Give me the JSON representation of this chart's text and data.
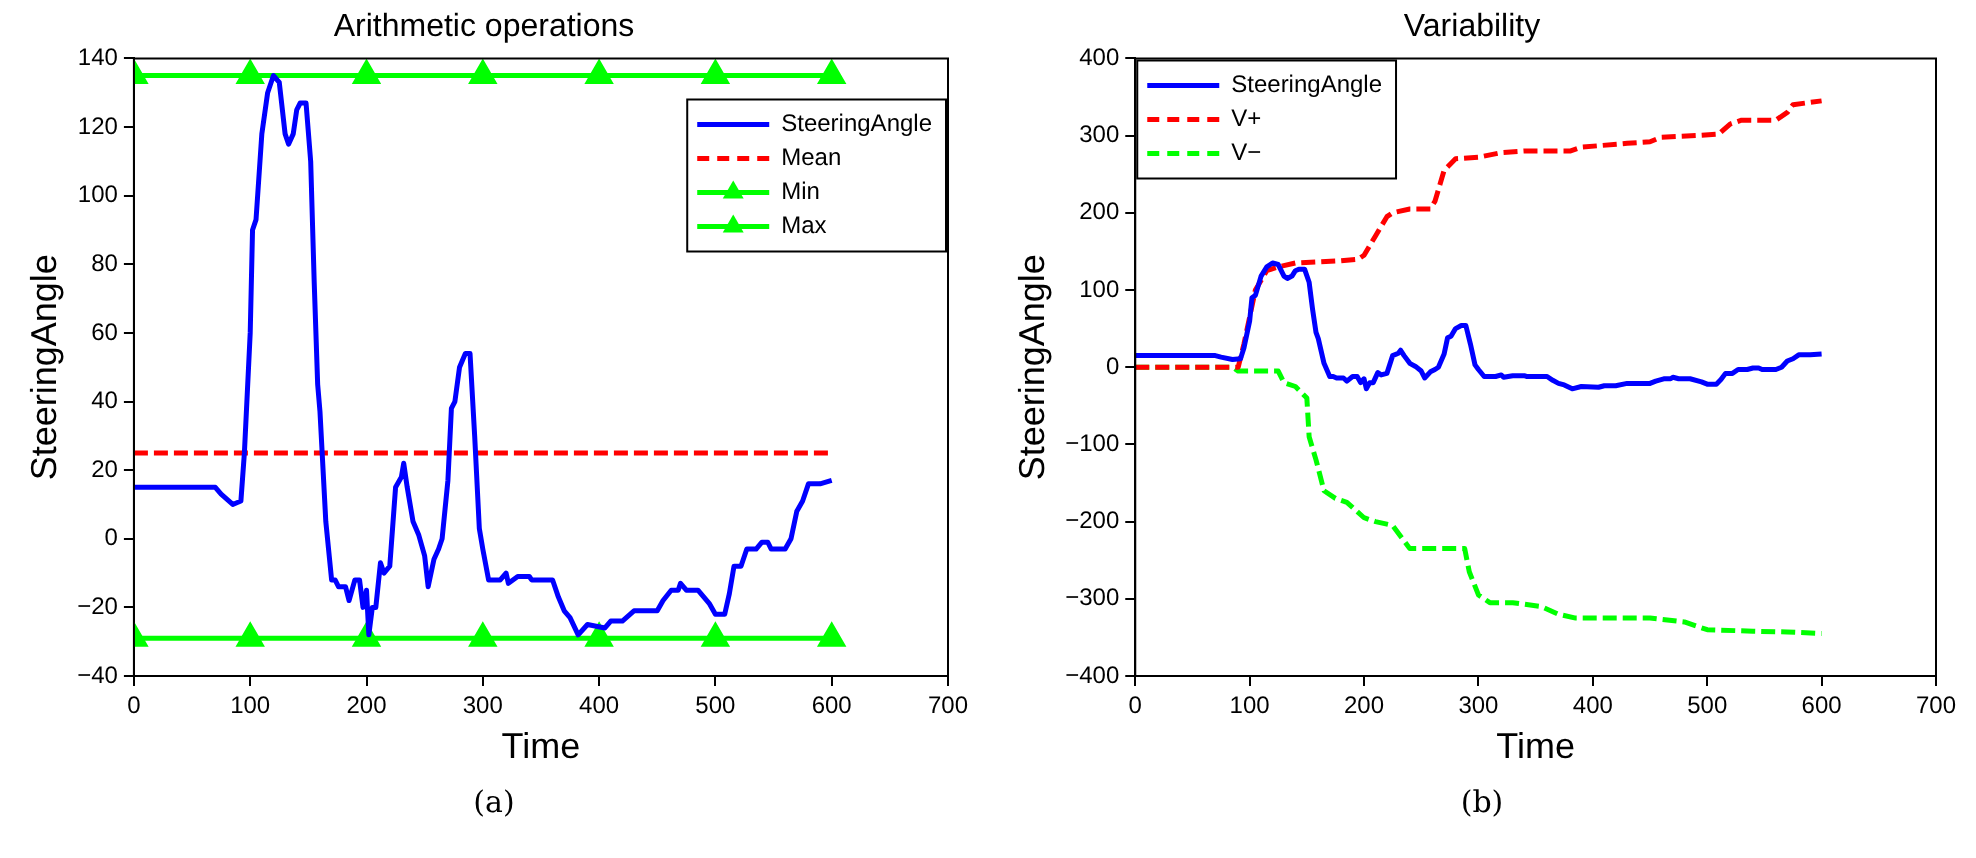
{
  "chart_data": [
    {
      "type": "line",
      "title": "Arithmetic operations",
      "xlabel": "Time",
      "ylabel": "SteeringAngle",
      "xlim": [
        0,
        700
      ],
      "xticks": [
        0,
        100,
        200,
        300,
        400,
        500,
        600,
        700
      ],
      "ylim": [
        -40,
        140
      ],
      "yticks": [
        -40,
        -20,
        0,
        20,
        40,
        60,
        80,
        100,
        120,
        140
      ],
      "grid": false,
      "legend": "top right",
      "annotations": [
        "(a)"
      ],
      "series": [
        {
          "name": "SteeringAngle",
          "color": "#0000ff",
          "line_style": "solid",
          "marker": "none",
          "x": [
            0,
            70,
            75,
            85,
            92,
            95,
            100,
            102,
            105,
            110,
            115,
            120,
            125,
            130,
            133,
            137,
            140,
            143,
            148,
            152,
            155,
            158,
            160,
            165,
            170,
            173,
            176,
            182,
            185,
            190,
            194,
            197,
            200,
            202,
            205,
            208,
            212,
            215,
            220,
            225,
            230,
            232,
            235,
            240,
            245,
            250,
            253,
            258,
            262,
            265,
            270,
            273,
            276,
            280,
            285,
            289,
            293,
            297,
            300,
            305,
            315,
            320,
            322,
            330,
            340,
            342,
            360,
            365,
            370,
            375,
            382,
            390,
            405,
            410,
            420,
            430,
            450,
            455,
            462,
            468,
            470,
            475,
            485,
            495,
            500,
            508,
            512,
            516,
            522,
            527,
            535,
            540,
            545,
            548,
            560,
            565,
            570,
            575,
            580,
            590,
            600
          ],
          "values": [
            15,
            15,
            13,
            10,
            11,
            25,
            60,
            90,
            93,
            118,
            130,
            135,
            133,
            118,
            115,
            118,
            125,
            127,
            127,
            110,
            75,
            45,
            37,
            5,
            -12,
            -12,
            -14,
            -14,
            -18,
            -12,
            -12,
            -20,
            -15,
            -28,
            -20,
            -20,
            -7,
            -10,
            -8,
            15,
            18,
            22,
            15,
            5,
            1,
            -5,
            -14,
            -6,
            -3,
            0,
            17,
            38,
            40,
            50,
            54,
            54,
            30,
            3,
            -3,
            -12,
            -12,
            -10,
            -13,
            -11,
            -11,
            -12,
            -12,
            -17,
            -21,
            -23,
            -28,
            -25,
            -26,
            -24,
            -24,
            -21,
            -21,
            -18,
            -15,
            -15,
            -13,
            -15,
            -15,
            -19,
            -22,
            -22,
            -16,
            -8,
            -8,
            -3,
            -3,
            -1,
            -1,
            -3,
            -3,
            0,
            8,
            11,
            16,
            16,
            17
          ]
        },
        {
          "name": "Mean",
          "color": "#ff0000",
          "line_style": "dashed",
          "marker": "none",
          "x": [
            0,
            600
          ],
          "values": [
            25,
            25
          ]
        },
        {
          "name": "Min",
          "color": "#00ff00",
          "line_style": "solid",
          "marker": "triangle",
          "x": [
            0,
            100,
            200,
            300,
            400,
            500,
            600
          ],
          "values": [
            -29,
            -29,
            -29,
            -29,
            -29,
            -29,
            -29
          ]
        },
        {
          "name": "Max",
          "color": "#00ff00",
          "line_style": "solid",
          "marker": "triangle",
          "x": [
            0,
            100,
            200,
            300,
            400,
            500,
            600
          ],
          "values": [
            135,
            135,
            135,
            135,
            135,
            135,
            135
          ]
        }
      ]
    },
    {
      "type": "line",
      "title": "Variability",
      "xlabel": "Time",
      "ylabel": "SteeringAngle",
      "xlim": [
        0,
        700
      ],
      "xticks": [
        0,
        100,
        200,
        300,
        400,
        500,
        600,
        700
      ],
      "ylim": [
        -400,
        400
      ],
      "yticks": [
        -400,
        -300,
        -200,
        -100,
        0,
        100,
        200,
        300,
        400
      ],
      "grid": false,
      "legend": "top left",
      "annotations": [
        "(b)"
      ],
      "series": [
        {
          "name": "SteeringAngle",
          "color": "#0000ff",
          "line_style": "solid",
          "marker": "none",
          "x": [
            0,
            70,
            75,
            85,
            92,
            95,
            100,
            102,
            105,
            110,
            115,
            120,
            125,
            130,
            133,
            137,
            140,
            143,
            148,
            152,
            155,
            158,
            160,
            165,
            170,
            173,
            176,
            182,
            185,
            190,
            194,
            197,
            200,
            202,
            205,
            208,
            212,
            215,
            220,
            225,
            230,
            232,
            235,
            240,
            245,
            250,
            253,
            258,
            262,
            265,
            270,
            273,
            276,
            280,
            285,
            289,
            293,
            297,
            300,
            305,
            315,
            320,
            322,
            330,
            340,
            342,
            360,
            365,
            370,
            375,
            382,
            390,
            405,
            410,
            420,
            430,
            450,
            455,
            462,
            468,
            470,
            475,
            485,
            495,
            500,
            508,
            512,
            516,
            522,
            527,
            535,
            540,
            545,
            548,
            560,
            565,
            570,
            575,
            580,
            590,
            600
          ],
          "values": [
            15,
            15,
            13,
            10,
            11,
            25,
            60,
            90,
            93,
            118,
            130,
            135,
            133,
            118,
            115,
            118,
            125,
            127,
            127,
            110,
            75,
            45,
            37,
            5,
            -12,
            -12,
            -14,
            -14,
            -18,
            -12,
            -12,
            -20,
            -15,
            -28,
            -20,
            -20,
            -7,
            -10,
            -8,
            15,
            18,
            22,
            15,
            5,
            1,
            -5,
            -14,
            -6,
            -3,
            0,
            17,
            38,
            40,
            50,
            54,
            54,
            30,
            3,
            -3,
            -12,
            -12,
            -10,
            -13,
            -11,
            -11,
            -12,
            -12,
            -17,
            -21,
            -23,
            -28,
            -25,
            -26,
            -24,
            -24,
            -21,
            -21,
            -18,
            -15,
            -15,
            -13,
            -15,
            -15,
            -19,
            -22,
            -22,
            -16,
            -8,
            -8,
            -3,
            -3,
            -1,
            -1,
            -3,
            -3,
            0,
            8,
            11,
            16,
            16,
            17
          ]
        },
        {
          "name": "V+",
          "color": "#ff0000",
          "line_style": "dashed",
          "marker": "none",
          "x": [
            0,
            90,
            95,
            105,
            115,
            125,
            140,
            180,
            195,
            200,
            210,
            220,
            225,
            240,
            258,
            262,
            270,
            280,
            300,
            320,
            340,
            380,
            390,
            430,
            450,
            460,
            490,
            510,
            520,
            530,
            560,
            570,
            575,
            600
          ],
          "values": [
            0,
            0,
            30,
            100,
            125,
            130,
            135,
            138,
            140,
            145,
            170,
            195,
            200,
            205,
            205,
            215,
            255,
            270,
            272,
            278,
            280,
            280,
            285,
            290,
            292,
            298,
            300,
            302,
            315,
            320,
            320,
            330,
            340,
            345
          ]
        },
        {
          "name": "V−",
          "color": "#00ff00",
          "line_style": "dashed",
          "marker": "none",
          "x": [
            0,
            85,
            90,
            125,
            130,
            140,
            150,
            152,
            158,
            165,
            175,
            185,
            200,
            210,
            225,
            230,
            240,
            260,
            288,
            292,
            300,
            310,
            330,
            355,
            370,
            385,
            430,
            450,
            480,
            500,
            540,
            570,
            600
          ],
          "values": [
            0,
            0,
            -5,
            -5,
            -20,
            -25,
            -40,
            -90,
            -120,
            -160,
            -170,
            -175,
            -195,
            -200,
            -205,
            -215,
            -235,
            -235,
            -235,
            -265,
            -295,
            -305,
            -305,
            -310,
            -320,
            -325,
            -325,
            -325,
            -330,
            -340,
            -342,
            -343,
            -345
          ]
        }
      ]
    }
  ]
}
